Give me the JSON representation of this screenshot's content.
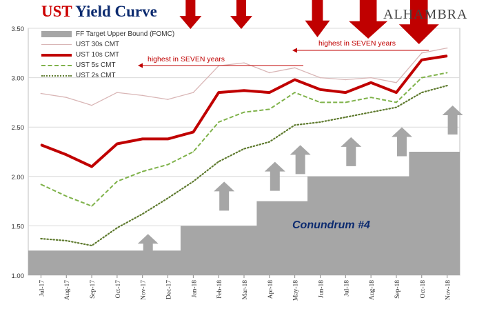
{
  "header": {
    "title_prefix": "UST",
    "title_rest": "Yield Curve",
    "logo_text": "ALHAMBRA"
  },
  "annotations": {
    "seven_years_1": "highest in SEVEN years",
    "seven_years_2": "highest in SEVEN years",
    "conundrum": "Conundrum #4"
  },
  "colors": {
    "ff": "#a6a6a6",
    "ust30": "#d9b6b6",
    "ust10": "#c00000",
    "ust5": "#7fb24a",
    "ust2": "#5e7a2e",
    "up_arrow": "#a6a6a6",
    "down_arrow": "#c00000"
  },
  "chart_data": {
    "type": "line",
    "title": "UST Yield Curve",
    "x": [
      "Jul-17",
      "Aug-17",
      "Sep-17",
      "Oct-17",
      "Nov-17",
      "Dec-17",
      "Jan-18",
      "Feb-18",
      "Mar-18",
      "Apr-18",
      "May-18",
      "Jun-18",
      "Jul-18",
      "Aug-18",
      "Sep-18",
      "Oct-18",
      "Nov-18"
    ],
    "ylim": [
      1.0,
      3.5
    ],
    "yticks": [
      "1.00",
      "1.50",
      "2.00",
      "2.50",
      "3.00",
      "3.50"
    ],
    "grid": true,
    "legend_position": "top-left",
    "series": [
      {
        "name": "FF Target Upper Bound (FOMC)",
        "style": "area-step",
        "values": [
          1.25,
          1.25,
          1.25,
          1.25,
          1.25,
          1.25,
          1.5,
          1.5,
          1.5,
          1.75,
          1.75,
          2.0,
          2.0,
          2.0,
          2.0,
          2.25,
          2.25
        ]
      },
      {
        "name": "UST 30s CMT",
        "style": "thin",
        "values": [
          2.84,
          2.8,
          2.72,
          2.85,
          2.82,
          2.78,
          2.85,
          3.12,
          3.15,
          3.05,
          3.1,
          3.0,
          2.98,
          3.0,
          2.95,
          3.25,
          3.3
        ]
      },
      {
        "name": "UST 10s CMT",
        "style": "thick",
        "values": [
          2.32,
          2.22,
          2.1,
          2.33,
          2.38,
          2.38,
          2.45,
          2.85,
          2.87,
          2.85,
          2.98,
          2.88,
          2.85,
          2.95,
          2.85,
          3.18,
          3.22
        ]
      },
      {
        "name": "UST 5s CMT",
        "style": "dashed",
        "values": [
          1.92,
          1.8,
          1.7,
          1.95,
          2.05,
          2.12,
          2.25,
          2.55,
          2.65,
          2.68,
          2.85,
          2.75,
          2.75,
          2.8,
          2.75,
          3.0,
          3.05
        ]
      },
      {
        "name": "UST 2s CMT",
        "style": "dotted",
        "values": [
          1.37,
          1.35,
          1.3,
          1.48,
          1.62,
          1.78,
          1.95,
          2.15,
          2.28,
          2.35,
          2.52,
          2.55,
          2.6,
          2.65,
          2.7,
          2.85,
          2.92
        ]
      }
    ],
    "up_arrow_months": [
      "Nov-17",
      "Feb-18",
      "Apr-18",
      "May-18",
      "Jul-18",
      "Sep-18",
      "Nov-18"
    ],
    "down_arrow_months": [
      "Jan-18",
      "Mar-18",
      "Jun-18",
      "Aug-18",
      "Oct-18"
    ]
  }
}
